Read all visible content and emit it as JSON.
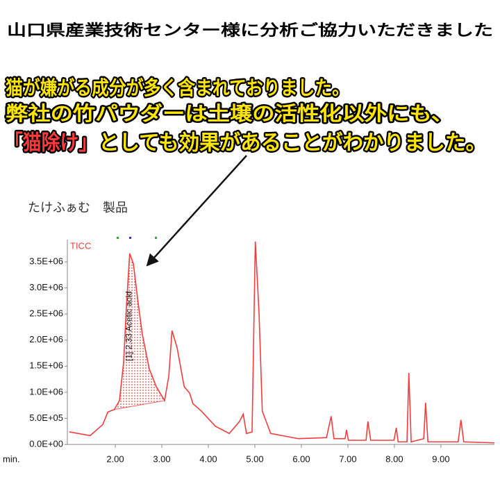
{
  "header": {
    "title": "山口県産業技術センター様に分析ご協力いただきました"
  },
  "headline": {
    "line1": "猫が嫌がる成分が多く含まれておりました。",
    "line2": "弊社の竹パウダーは土壌の活性化以外にも、",
    "line3_highlight": "「猫除け」",
    "line3_rest": "としても効果があることがわかりました。"
  },
  "chart_data": {
    "type": "line",
    "subtitle": "たけふぁむ　製品",
    "xlabel": "min.",
    "x": [
      1.01,
      1.46,
      1.73,
      1.84,
      1.98,
      2.09,
      2.18,
      2.24,
      2.31,
      2.39,
      2.48,
      2.58,
      2.73,
      2.88,
      3.06,
      3.15,
      3.22,
      3.33,
      3.48,
      3.6,
      3.67,
      3.85,
      4.15,
      4.45,
      4.67,
      4.75,
      4.82,
      4.94,
      5.01,
      5.09,
      5.16,
      5.34,
      5.94,
      6.54,
      6.64,
      6.7,
      6.94,
      6.97,
      7.01,
      7.39,
      7.43,
      7.49,
      7.99,
      8.04,
      8.08,
      8.27,
      8.31,
      8.36,
      8.63,
      8.67,
      8.72,
      9.37,
      9.43,
      9.49,
      10.15
    ],
    "series": [
      {
        "name": "TICC",
        "color": "#f03c3c",
        "values": [
          240000,
          170000,
          380000,
          620000,
          670000,
          840000,
          1580000,
          2650000,
          3660000,
          3460000,
          2790000,
          2120000,
          1450000,
          1110000,
          840000,
          1310000,
          2180000,
          1850000,
          1110000,
          980000,
          780000,
          640000,
          350000,
          210000,
          440000,
          580000,
          210000,
          240000,
          3890000,
          2520000,
          640000,
          210000,
          110000,
          130000,
          540000,
          110000,
          110000,
          280000,
          80000,
          80000,
          440000,
          80000,
          80000,
          320000,
          50000,
          50000,
          1370000,
          50000,
          110000,
          800000,
          50000,
          50000,
          470000,
          50000,
          30000
        ]
      }
    ],
    "xlim": [
      0.97,
      10.15
    ],
    "xticks": [
      {
        "value": 2,
        "label": "2.00"
      },
      {
        "value": 3,
        "label": "3.00"
      },
      {
        "value": 4,
        "label": "4.00"
      },
      {
        "value": 5,
        "label": "5.00"
      },
      {
        "value": 6,
        "label": "6.00"
      },
      {
        "value": 7,
        "label": "7.00"
      },
      {
        "value": 8,
        "label": "8.00"
      },
      {
        "value": 9,
        "label": "9.00"
      }
    ],
    "ylim": [
      0,
      3900000
    ],
    "yticks": [
      {
        "value": 0,
        "label": "0.0E+00"
      },
      {
        "value": 500000,
        "label": "5.0E+05"
      },
      {
        "value": 1000000,
        "label": "1.0E+06"
      },
      {
        "value": 1500000,
        "label": "1.5E+06"
      },
      {
        "value": 2000000,
        "label": "2.0E+06"
      },
      {
        "value": 2500000,
        "label": "2.5E+06"
      },
      {
        "value": 3000000,
        "label": "3.0E+06"
      },
      {
        "value": 3500000,
        "label": "3.5E+06"
      }
    ],
    "annotations": [
      {
        "text": "[1] 2.33 Acetic acid",
        "x": 2.33
      }
    ]
  }
}
